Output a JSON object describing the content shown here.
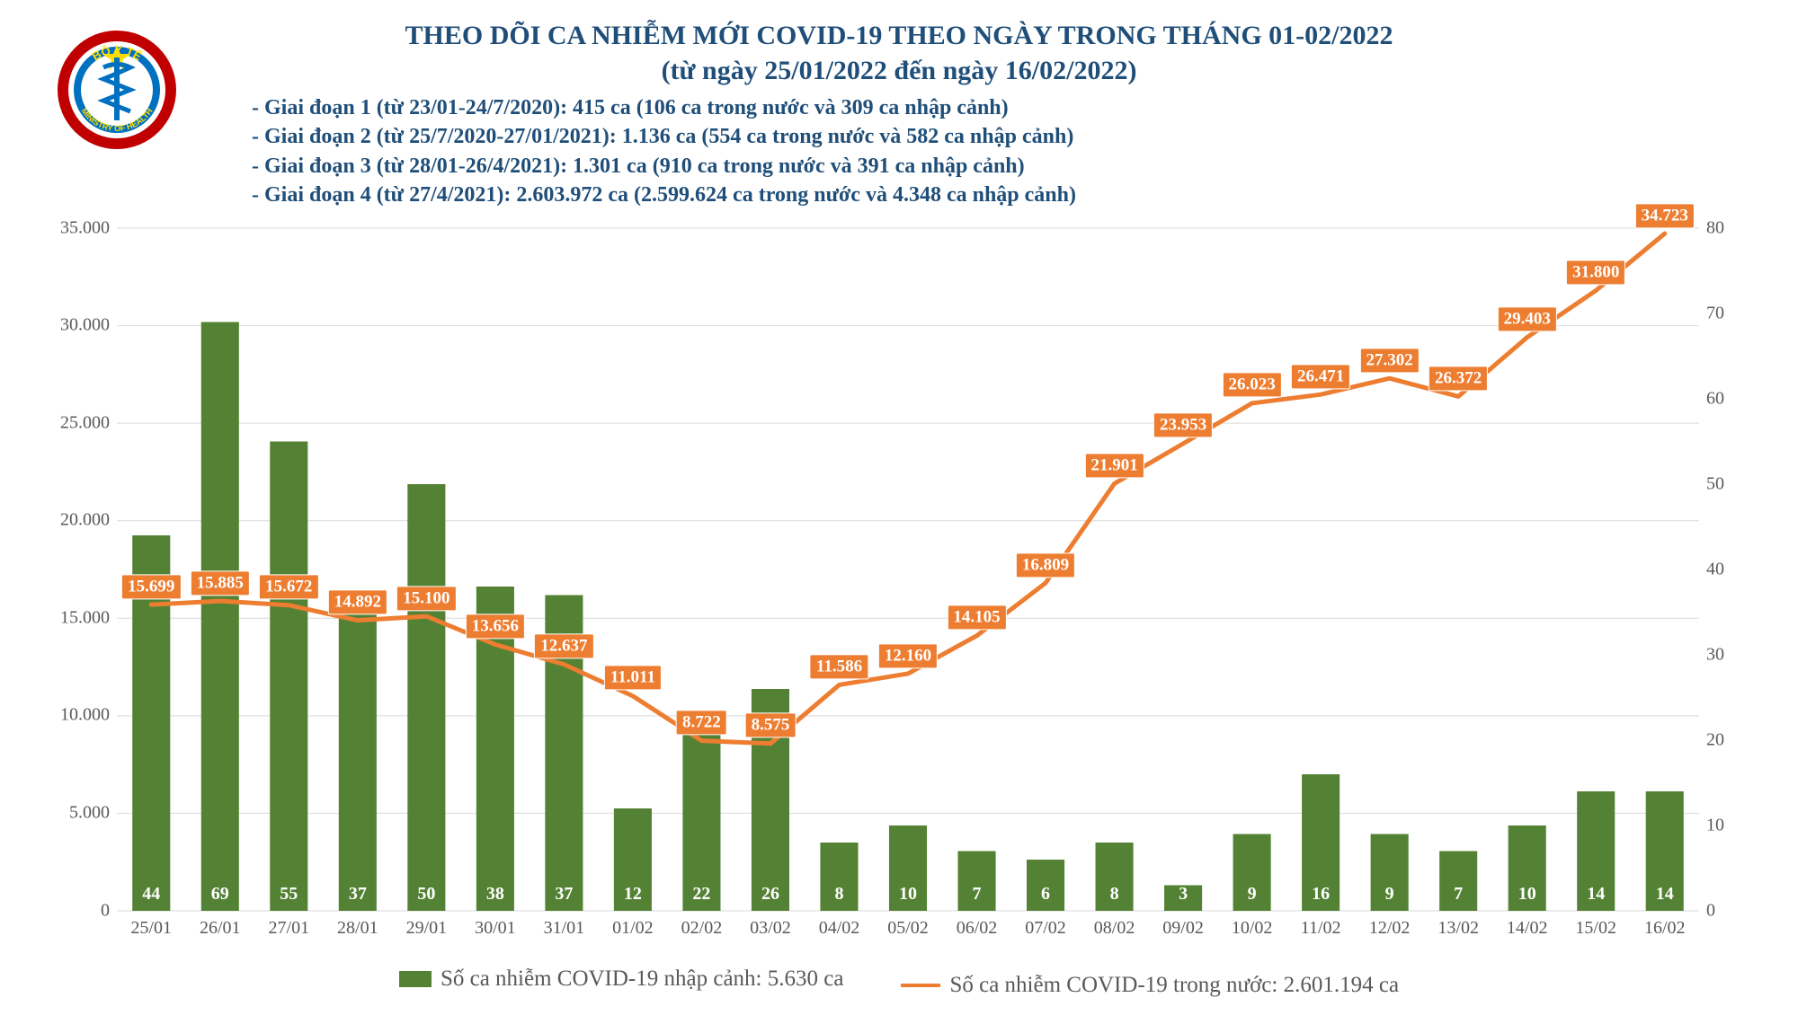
{
  "logo": {
    "org_top": "BỘ Y TẾ",
    "org_bottom": "MINISTRY OF HEALTH",
    "ring_outer": "#c00000",
    "ring_inner": "#0070c0",
    "bg": "#ffffff",
    "star": "#ffde00"
  },
  "title": {
    "line1": "THEO DÕI CA NHIỄM MỚI COVID-19 THEO NGÀY TRONG THÁNG 01-02/2022",
    "line2": "(từ ngày 25/01/2022 đến ngày 16/02/2022)",
    "color": "#1f4e79",
    "fontsize": 30
  },
  "notes": {
    "color": "#1f4e79",
    "fontsize": 24,
    "lines": [
      "- Giai đoạn 1 (từ 23/01-24/7/2020): 415 ca (106 ca trong nước và 309 ca nhập cảnh)",
      "- Giai đoạn 2 (từ 25/7/2020-27/01/2021): 1.136 ca (554 ca trong nước và 582 ca nhập cảnh)",
      "- Giai đoạn 3 (từ 28/01-26/4/2021): 1.301 ca (910 ca trong nước và 391 ca nhập cảnh)",
      "- Giai đoạn 4 (từ 27/4/2021): 2.603.972 ca (2.599.624 ca trong nước và 4.348 ca nhập cảnh)"
    ]
  },
  "chart": {
    "type": "combo-bar-line",
    "background": "#ffffff",
    "grid_color": "#d9d9d9",
    "axis_text_color": "#595959",
    "axis_fontsize": 20,
    "label_fontsize": 19,
    "bar_label_fontsize": 20,
    "bar_color": "#548235",
    "line_color": "#ed7d31",
    "line_width": 5,
    "bar_width_ratio": 0.55,
    "y_left": {
      "min": 0,
      "max": 35000,
      "step": 5000,
      "format": "thousand-dot"
    },
    "y_right": {
      "min": 0,
      "max": 80,
      "step": 10
    },
    "categories": [
      "25/01",
      "26/01",
      "27/01",
      "28/01",
      "29/01",
      "30/01",
      "31/01",
      "01/02",
      "02/02",
      "03/02",
      "04/02",
      "05/02",
      "06/02",
      "07/02",
      "08/02",
      "09/02",
      "10/02",
      "11/02",
      "12/02",
      "13/02",
      "14/02",
      "15/02",
      "16/02"
    ],
    "bars": [
      44,
      69,
      55,
      37,
      50,
      38,
      37,
      12,
      22,
      26,
      8,
      10,
      7,
      6,
      8,
      3,
      9,
      16,
      9,
      7,
      10,
      14,
      14
    ],
    "line": [
      15699,
      15885,
      15672,
      14892,
      15100,
      13656,
      12637,
      11011,
      8722,
      8575,
      11586,
      12160,
      14105,
      16809,
      21901,
      23953,
      26023,
      26471,
      27302,
      26372,
      29403,
      31800,
      34723
    ],
    "line_labels": [
      "15.699",
      "15.885",
      "15.672",
      "14.892",
      "15.100",
      "13.656",
      "12.637",
      "11.011",
      "8.722",
      "8.575",
      "11.586",
      "12.160",
      "14.105",
      "16.809",
      "21.901",
      "23.953",
      "26.023",
      "26.471",
      "27.302",
      "26.372",
      "29.403",
      "31.800",
      "34.723"
    ]
  },
  "legend": {
    "bar_label": "Số ca nhiễm COVID-19 nhập cảnh: 5.630 ca",
    "line_label": "Số ca nhiễm COVID-19 trong nước: 2.601.194 ca",
    "fontsize": 25,
    "text_color": "#595959"
  }
}
